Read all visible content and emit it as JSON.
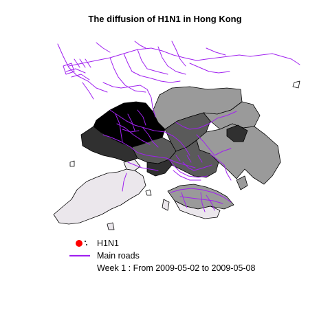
{
  "title": "The diffusion of H1N1 in Hong Kong",
  "legend": {
    "items": [
      {
        "label": "H1N1",
        "symbol": "red-dot-icon",
        "color": "#ff0000"
      },
      {
        "label": "Main roads",
        "symbol": "purple-line-icon",
        "color": "#a020f0"
      }
    ],
    "period": "Week 1 : From 2009-05-02 to 2009-05-08"
  },
  "colors": {
    "road": "#a020f0",
    "case_marker": "#ff0000",
    "district_outline": "#000000",
    "district_shades": [
      "#000000",
      "#303030",
      "#5a5a5a",
      "#9a9a9a",
      "#ebe7ec"
    ]
  }
}
